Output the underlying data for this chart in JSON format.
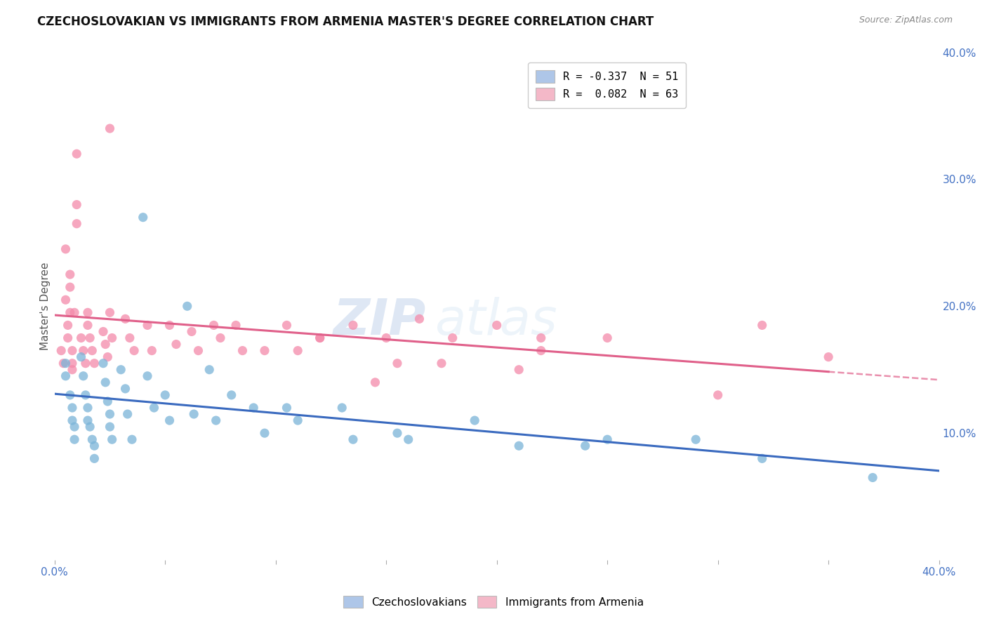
{
  "title": "CZECHOSLOVAKIAN VS IMMIGRANTS FROM ARMENIA MASTER'S DEGREE CORRELATION CHART",
  "source": "Source: ZipAtlas.com",
  "ylabel": "Master's Degree",
  "xlim": [
    0.0,
    0.4
  ],
  "ylim": [
    0.0,
    0.4
  ],
  "legend_entries": [
    {
      "label": "R = -0.337  N = 51",
      "color": "#aec6e8"
    },
    {
      "label": "R =  0.082  N = 63",
      "color": "#f4b8c8"
    }
  ],
  "blue_color": "#7ab4d8",
  "pink_color": "#f48aaa",
  "blue_line_color": "#3a6abf",
  "pink_line_color": "#e0608a",
  "background_color": "#ffffff",
  "grid_color": "#cccccc",
  "blue_scatter_x": [
    0.005,
    0.005,
    0.007,
    0.008,
    0.008,
    0.009,
    0.009,
    0.012,
    0.013,
    0.014,
    0.015,
    0.015,
    0.016,
    0.017,
    0.018,
    0.018,
    0.022,
    0.023,
    0.024,
    0.025,
    0.025,
    0.026,
    0.03,
    0.032,
    0.033,
    0.035,
    0.04,
    0.042,
    0.045,
    0.05,
    0.052,
    0.06,
    0.063,
    0.07,
    0.073,
    0.08,
    0.09,
    0.095,
    0.105,
    0.11,
    0.13,
    0.135,
    0.155,
    0.16,
    0.19,
    0.21,
    0.24,
    0.25,
    0.29,
    0.32,
    0.37
  ],
  "blue_scatter_y": [
    0.155,
    0.145,
    0.13,
    0.12,
    0.11,
    0.105,
    0.095,
    0.16,
    0.145,
    0.13,
    0.12,
    0.11,
    0.105,
    0.095,
    0.09,
    0.08,
    0.155,
    0.14,
    0.125,
    0.115,
    0.105,
    0.095,
    0.15,
    0.135,
    0.115,
    0.095,
    0.27,
    0.145,
    0.12,
    0.13,
    0.11,
    0.2,
    0.115,
    0.15,
    0.11,
    0.13,
    0.12,
    0.1,
    0.12,
    0.11,
    0.12,
    0.095,
    0.1,
    0.095,
    0.11,
    0.09,
    0.09,
    0.095,
    0.095,
    0.08,
    0.065
  ],
  "pink_scatter_x": [
    0.003,
    0.004,
    0.005,
    0.005,
    0.006,
    0.006,
    0.007,
    0.007,
    0.007,
    0.008,
    0.008,
    0.008,
    0.009,
    0.012,
    0.013,
    0.014,
    0.015,
    0.015,
    0.016,
    0.017,
    0.018,
    0.022,
    0.023,
    0.024,
    0.025,
    0.026,
    0.032,
    0.034,
    0.036,
    0.042,
    0.044,
    0.052,
    0.055,
    0.062,
    0.065,
    0.072,
    0.075,
    0.082,
    0.085,
    0.095,
    0.105,
    0.11,
    0.12,
    0.135,
    0.15,
    0.165,
    0.18,
    0.2,
    0.22,
    0.25,
    0.155,
    0.22,
    0.175,
    0.145,
    0.21,
    0.32,
    0.35,
    0.12,
    0.025,
    0.3,
    0.01,
    0.01,
    0.01
  ],
  "pink_scatter_y": [
    0.165,
    0.155,
    0.245,
    0.205,
    0.185,
    0.175,
    0.225,
    0.215,
    0.195,
    0.165,
    0.155,
    0.15,
    0.195,
    0.175,
    0.165,
    0.155,
    0.195,
    0.185,
    0.175,
    0.165,
    0.155,
    0.18,
    0.17,
    0.16,
    0.195,
    0.175,
    0.19,
    0.175,
    0.165,
    0.185,
    0.165,
    0.185,
    0.17,
    0.18,
    0.165,
    0.185,
    0.175,
    0.185,
    0.165,
    0.165,
    0.185,
    0.165,
    0.175,
    0.185,
    0.175,
    0.19,
    0.175,
    0.185,
    0.175,
    0.175,
    0.155,
    0.165,
    0.155,
    0.14,
    0.15,
    0.185,
    0.16,
    0.175,
    0.34,
    0.13,
    0.32,
    0.28,
    0.265
  ]
}
